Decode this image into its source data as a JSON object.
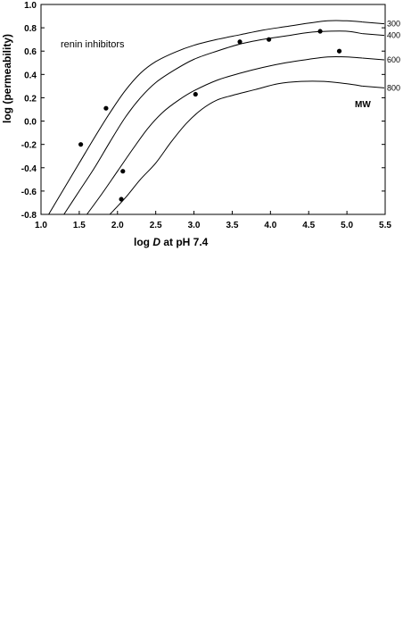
{
  "chart_data": {
    "type": "line",
    "xlabel_prefix": "log ",
    "xlabel_italic": "D",
    "xlabel_suffix": " at pH 7.4",
    "ylabel": "log (permeability)",
    "xlim": [
      1.0,
      5.5
    ],
    "ylim": [
      -0.8,
      1.0
    ],
    "xticks": [
      "1.0",
      "1.5",
      "2.0",
      "2.5",
      "3.0",
      "3.5",
      "4.0",
      "4.5",
      "5.0",
      "5.5"
    ],
    "yticks": [
      "-0.8",
      "-0.6",
      "-0.4",
      "-0.2",
      "0.0",
      "0.2",
      "0.4",
      "0.6",
      "0.8",
      "1.0"
    ],
    "annotation": "renin inhibitors",
    "curve_group_label": "MW",
    "series": [
      {
        "label": "300",
        "x": [
          1.1,
          1.3,
          1.5,
          1.7,
          1.9,
          2.1,
          2.3,
          2.5,
          2.75,
          3.0,
          3.3,
          3.6,
          3.9,
          4.2,
          4.5,
          4.75,
          5.0,
          5.2
        ],
        "y": [
          -0.8,
          -0.58,
          -0.36,
          -0.14,
          0.07,
          0.26,
          0.41,
          0.51,
          0.59,
          0.65,
          0.7,
          0.74,
          0.78,
          0.81,
          0.84,
          0.86,
          0.86,
          0.85
        ]
      },
      {
        "label": "400",
        "x": [
          1.3,
          1.5,
          1.7,
          1.9,
          2.1,
          2.3,
          2.5,
          2.75,
          3.0,
          3.3,
          3.6,
          3.9,
          4.2,
          4.5,
          4.75,
          5.0,
          5.2
        ],
        "y": [
          -0.8,
          -0.6,
          -0.4,
          -0.18,
          0.03,
          0.2,
          0.33,
          0.44,
          0.53,
          0.6,
          0.66,
          0.7,
          0.73,
          0.76,
          0.77,
          0.77,
          0.75
        ]
      },
      {
        "label": "600",
        "x": [
          1.6,
          1.8,
          2.0,
          2.2,
          2.4,
          2.6,
          2.8,
          3.0,
          3.3,
          3.6,
          3.9,
          4.2,
          4.5,
          4.75,
          5.0,
          5.2
        ],
        "y": [
          -0.8,
          -0.62,
          -0.43,
          -0.24,
          -0.06,
          0.08,
          0.18,
          0.26,
          0.35,
          0.41,
          0.46,
          0.5,
          0.53,
          0.55,
          0.55,
          0.54
        ]
      },
      {
        "label": "800",
        "x": [
          1.9,
          2.1,
          2.3,
          2.5,
          2.7,
          2.9,
          3.1,
          3.3,
          3.5,
          3.8,
          4.1,
          4.4,
          4.7,
          5.0,
          5.2
        ],
        "y": [
          -0.8,
          -0.66,
          -0.5,
          -0.36,
          -0.18,
          -0.02,
          0.1,
          0.18,
          0.22,
          0.27,
          0.32,
          0.34,
          0.34,
          0.32,
          0.3
        ]
      }
    ],
    "points": {
      "x": [
        1.52,
        1.85,
        2.07,
        2.05,
        3.02,
        3.6,
        3.98,
        4.65,
        4.9
      ],
      "y": [
        -0.2,
        0.11,
        -0.43,
        -0.67,
        0.23,
        0.68,
        0.7,
        0.77,
        0.6
      ]
    },
    "grid": false,
    "legend": "none"
  }
}
